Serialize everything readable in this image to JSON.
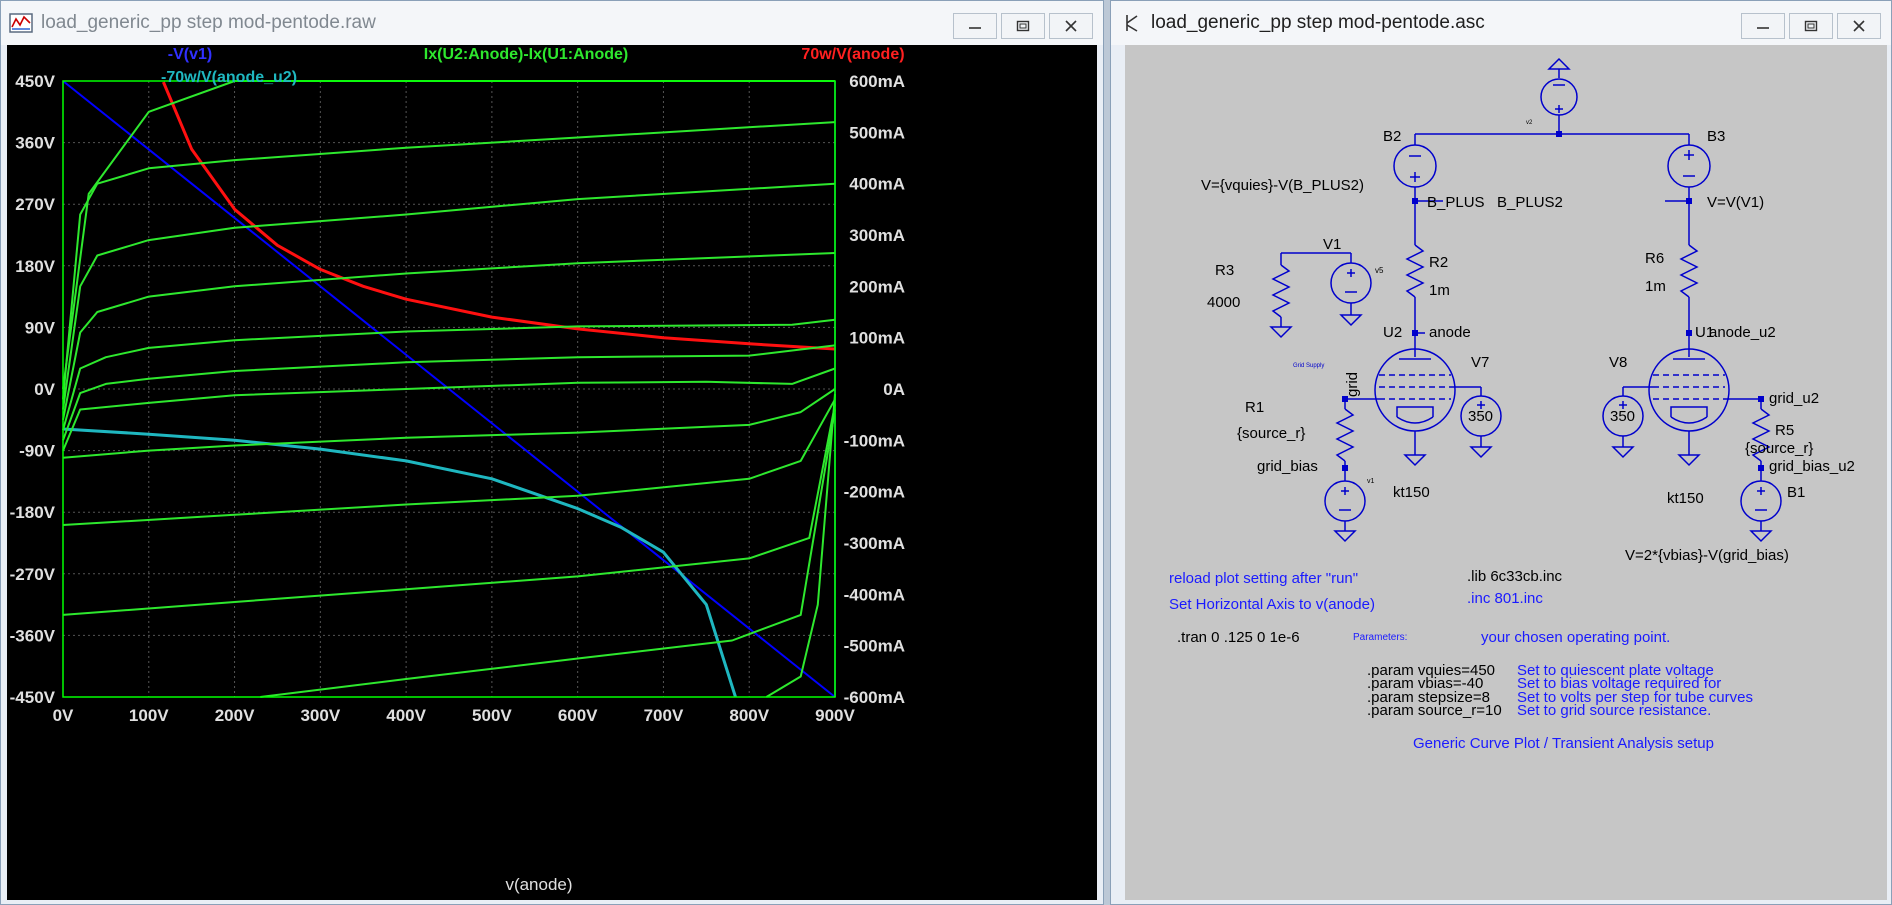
{
  "plot_window": {
    "title": "load_generic_pp step mod-pentode.raw",
    "x_axis_title": "v(anode)",
    "traces": {
      "blue": "-V(v1)",
      "green": "Ix(U2:Anode)-Ix(U1:Anode)",
      "red": "70w/V(anode)",
      "cyan": "-70w/V(anode_u2)"
    },
    "x_ticks": [
      "0V",
      "100V",
      "200V",
      "300V",
      "400V",
      "500V",
      "600V",
      "700V",
      "800V",
      "900V"
    ],
    "y_left_ticks": [
      "450V",
      "360V",
      "270V",
      "180V",
      "90V",
      "0V",
      "-90V",
      "-180V",
      "-270V",
      "-360V",
      "-450V"
    ],
    "y_right_ticks": [
      "600mA",
      "500mA",
      "400mA",
      "300mA",
      "200mA",
      "100mA",
      "0A",
      "-100mA",
      "-200mA",
      "-300mA",
      "-400mA",
      "-500mA",
      "-600mA"
    ],
    "colors": {
      "background": "#000000",
      "grid": "#555555",
      "axis": "#00ff00",
      "blue": "#0000ff",
      "green": "#2ee82e",
      "red": "#ff1010",
      "cyan": "#1fb7c0",
      "tick_text": "#e0e0e0"
    },
    "chart_data": {
      "type": "line",
      "xlabel": "v(anode)",
      "xlim": [
        0,
        900
      ],
      "ylim_left": [
        -450,
        450
      ],
      "ylim_right_mA": [
        -600,
        600
      ],
      "series": [
        {
          "name": "-V(v1)",
          "axis": "left",
          "x": [
            0,
            900
          ],
          "y": [
            450,
            -450
          ]
        },
        {
          "name": "70w/V(anode)",
          "axis": "right",
          "x": [
            117,
            150,
            200,
            250,
            300,
            350,
            400,
            500,
            600,
            700,
            800,
            900
          ],
          "y": [
            598,
            467,
            350,
            280,
            233,
            200,
            175,
            140,
            117,
            100,
            88,
            78
          ]
        },
        {
          "name": "-70w/V(anode_u2)",
          "axis": "right",
          "x": [
            0,
            100,
            200,
            300,
            400,
            500,
            600,
            650,
            700,
            750,
            784
          ],
          "y": [
            -78,
            -88,
            -100,
            -117,
            -140,
            -175,
            -233,
            -269,
            -318,
            -420,
            -600
          ]
        },
        {
          "name": "Ix(U2:Anode)-Ix(U1:Anode)",
          "axis": "right",
          "x": [
            0,
            30,
            100,
            200,
            400,
            600,
            700,
            900
          ],
          "y": [
            0,
            380,
            540,
            620,
            620,
            620,
            620,
            620
          ]
        },
        {
          "name": "Ix(U2:Anode)-Ix(U1:Anode)",
          "axis": "right",
          "x": [
            0,
            20,
            40,
            100,
            200,
            400,
            600,
            900
          ],
          "y": [
            -20,
            340,
            400,
            430,
            446,
            470,
            490,
            520
          ]
        },
        {
          "name": "Ix(U2:Anode)-Ix(U1:Anode)",
          "axis": "right",
          "x": [
            0,
            20,
            40,
            100,
            200,
            400,
            600,
            900
          ],
          "y": [
            -40,
            200,
            260,
            290,
            314,
            340,
            370,
            400
          ]
        },
        {
          "name": "Ix(U2:Anode)-Ix(U1:Anode)",
          "axis": "right",
          "x": [
            0,
            20,
            40,
            100,
            200,
            400,
            600,
            900
          ],
          "y": [
            -60,
            110,
            150,
            180,
            200,
            225,
            245,
            265
          ]
        },
        {
          "name": "Ix(U2:Anode)-Ix(U1:Anode)",
          "axis": "right",
          "x": [
            0,
            20,
            50,
            100,
            200,
            400,
            600,
            850,
            900
          ],
          "y": [
            -80,
            40,
            62,
            80,
            95,
            112,
            122,
            125,
            135
          ]
        },
        {
          "name": "Ix(U2:Anode)-Ix(U1:Anode)",
          "axis": "right",
          "x": [
            0,
            20,
            50,
            100,
            200,
            400,
            600,
            800,
            900
          ],
          "y": [
            -100,
            -8,
            10,
            20,
            35,
            52,
            62,
            65,
            85
          ]
        },
        {
          "name": "Ix(U2:Anode)-Ix(U1:Anode)",
          "axis": "right",
          "x": [
            0,
            20,
            100,
            200,
            400,
            600,
            750,
            850,
            900
          ],
          "y": [
            -120,
            -40,
            -27,
            -12,
            0,
            12,
            14,
            10,
            40
          ]
        },
        {
          "name": "Ix(U2:Anode)-Ix(U1:Anode)",
          "axis": "right",
          "x": [
            0,
            100,
            200,
            400,
            600,
            800,
            860,
            900
          ],
          "y": [
            -134,
            -120,
            -110,
            -95,
            -85,
            -70,
            -45,
            0
          ]
        },
        {
          "name": "Ix(U2:Anode)-Ix(U1:Anode)",
          "axis": "right",
          "x": [
            0,
            200,
            400,
            600,
            800,
            860,
            900
          ],
          "y": [
            -265,
            -245,
            -225,
            -208,
            -175,
            -140,
            -20
          ]
        },
        {
          "name": "Ix(U2:Anode)-Ix(U1:Anode)",
          "axis": "right",
          "x": [
            0,
            200,
            400,
            600,
            800,
            870,
            900
          ],
          "y": [
            -440,
            -415,
            -390,
            -365,
            -330,
            -290,
            -30
          ]
        },
        {
          "name": "Ix(U2:Anode)-Ix(U1:Anode)",
          "axis": "right",
          "x": [
            230,
            400,
            600,
            780,
            860,
            900
          ],
          "y": [
            -600,
            -565,
            -525,
            -490,
            -440,
            -40
          ]
        },
        {
          "name": "Ix(U2:Anode)-Ix(U1:Anode)",
          "axis": "right",
          "x": [
            820,
            860,
            880,
            900
          ],
          "y": [
            -600,
            -560,
            -420,
            -10
          ]
        }
      ]
    }
  },
  "schematic_window": {
    "title": "load_generic_pp step mod-pentode.asc",
    "labels": {
      "b2": "B2",
      "b3": "B3",
      "v2_small": "v2",
      "b2_value": "V={vquies}-V(B_PLUS2)",
      "b_plus": "B_PLUS",
      "b_plus2": "B_PLUS2",
      "b3_value": "V=V(V1)",
      "v1": "V1",
      "v5_small": "v5",
      "r3": "R3",
      "r3_value": "4000",
      "r2": "R2",
      "r2_value": "1m",
      "r6": "R6",
      "r6_value": "1m",
      "u2": "U2",
      "anode": "anode",
      "u1": "U1",
      "anode_u2": "anode_u2",
      "grid_supply": "Grid Supply",
      "grid": "grid",
      "v7": "V7",
      "v7_value": "350",
      "v8": "V8",
      "v8_value": "350",
      "r1": "R1",
      "r1_value": "{source_r}",
      "r5": "R5",
      "r5_value": "{source_r}",
      "grid_bias": "grid_bias",
      "grid_u2": "grid_u2",
      "grid_bias_u2": "grid_bias_u2",
      "v1_small": "v1",
      "kt150_left": "kt150",
      "kt150_right": "kt150",
      "b1": "B1",
      "b1_value": "V=2*{vbias}-V(grid_bias)"
    },
    "comments": {
      "c1": "reload plot setting after \"run\"",
      "c2": "Set Horizontal Axis to v(anode)",
      "lib": ".lib 6c33cb.inc",
      "inc": ".inc 801.inc",
      "tran": ".tran 0 .125 0 1e-6",
      "params_label": "Parameters:",
      "op_point": "your chosen operating point.",
      "p1": ".param vquies=450",
      "p2": ".param vbias=-40",
      "p3": ".param stepsize=8",
      "p4": ".param source_r=10",
      "d1": "Set to quiescent plate voltage",
      "d2": "Set to bias voltage required for",
      "d3": "Set to volts per step for tube curves",
      "d4": "Set to grid source resistance.",
      "footer": "Generic Curve Plot / Transient Analysis setup"
    },
    "colors": {
      "background": "#c6c6c6",
      "wire": "#0000cc",
      "component": "#0000cc",
      "text": "#000000",
      "comment": "#1a1aff"
    }
  }
}
